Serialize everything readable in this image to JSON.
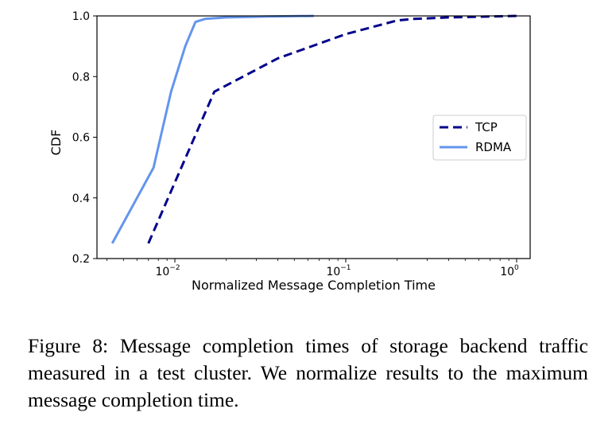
{
  "chart_data": {
    "type": "line",
    "xscale": "log",
    "xlim": [
      0.0035,
      1.2
    ],
    "ylim": [
      0.2,
      1.0
    ],
    "xlabel": "Normalized Message Completion Time",
    "ylabel": "CDF",
    "yticks": [
      "0.2",
      "0.4",
      "0.6",
      "0.8",
      "1.0"
    ],
    "xticks": [
      {
        "base": "10",
        "exp": "−2"
      },
      {
        "base": "10",
        "exp": "−1"
      },
      {
        "base": "10",
        "exp": "0"
      }
    ],
    "legend_position": "center-right",
    "series": [
      {
        "name": "TCP",
        "style": "dashed",
        "color": "#00008b",
        "x": [
          0.007,
          0.017,
          0.04,
          0.1,
          0.2,
          0.25,
          0.4,
          1.0
        ],
        "y": [
          0.25,
          0.75,
          0.86,
          0.94,
          0.985,
          0.99,
          0.995,
          1.0
        ]
      },
      {
        "name": "RDMA",
        "style": "solid",
        "color": "#6495ed",
        "x": [
          0.0043,
          0.0075,
          0.0095,
          0.0115,
          0.0132,
          0.015,
          0.02,
          0.035,
          0.065
        ],
        "y": [
          0.25,
          0.5,
          0.75,
          0.9,
          0.98,
          0.99,
          0.995,
          0.998,
          1.0
        ]
      }
    ]
  },
  "caption": "Figure 8: Message completion times of storage backend traffic measured in a test cluster. We normalize results to the maximum message completion time."
}
